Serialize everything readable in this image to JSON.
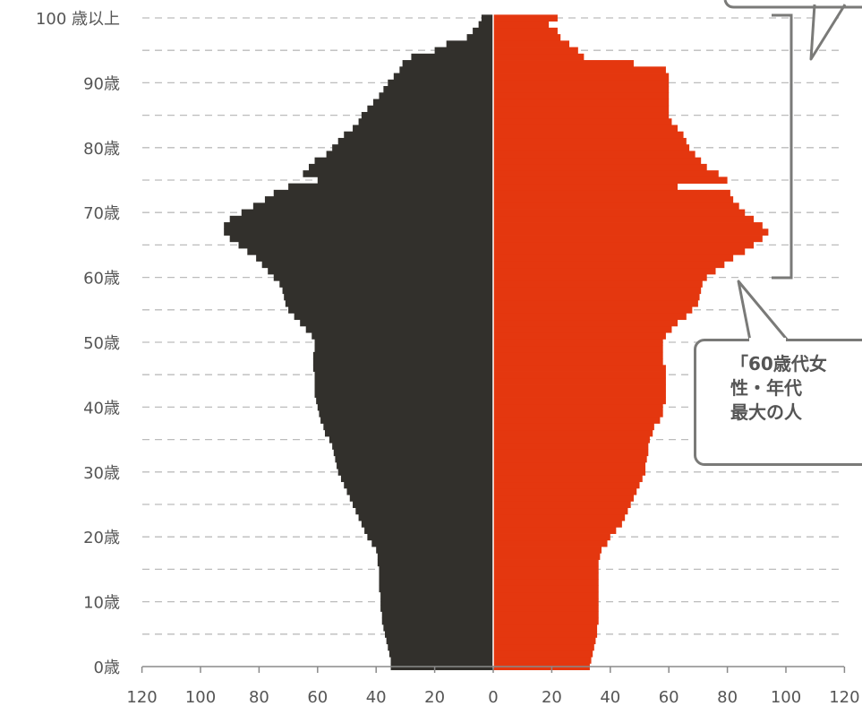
{
  "chart_data": {
    "type": "bar",
    "orientation": "horizontal",
    "subtype": "population-pyramid",
    "title": "",
    "xlabel": "",
    "ylabel": "",
    "xlim": [
      -120,
      120
    ],
    "ylim": [
      0,
      100
    ],
    "grid": "horizontal-dashed",
    "y_tick_labels": [
      {
        "age": 0,
        "label": "0歳"
      },
      {
        "age": 10,
        "label": "10歳"
      },
      {
        "age": 20,
        "label": "20歳"
      },
      {
        "age": 30,
        "label": "30歳"
      },
      {
        "age": 40,
        "label": "40歳"
      },
      {
        "age": 50,
        "label": "50歳"
      },
      {
        "age": 60,
        "label": "60歳"
      },
      {
        "age": 70,
        "label": "70歳"
      },
      {
        "age": 80,
        "label": "80歳"
      },
      {
        "age": 90,
        "label": "90歳"
      },
      {
        "age": 100,
        "label": "100 歳以上"
      }
    ],
    "x_tick_labels": [
      "120",
      "100",
      "80",
      "60",
      "40",
      "20",
      "0",
      "20",
      "40",
      "60",
      "80",
      "100",
      "120"
    ],
    "ages": [
      0,
      1,
      2,
      3,
      4,
      5,
      6,
      7,
      8,
      9,
      10,
      11,
      12,
      13,
      14,
      15,
      16,
      17,
      18,
      19,
      20,
      21,
      22,
      23,
      24,
      25,
      26,
      27,
      28,
      29,
      30,
      31,
      32,
      33,
      34,
      35,
      36,
      37,
      38,
      39,
      40,
      41,
      42,
      43,
      44,
      45,
      46,
      47,
      48,
      49,
      50,
      51,
      52,
      53,
      54,
      55,
      56,
      57,
      58,
      59,
      60,
      61,
      62,
      63,
      64,
      65,
      66,
      67,
      68,
      69,
      70,
      71,
      72,
      73,
      74,
      75,
      76,
      77,
      78,
      79,
      80,
      81,
      82,
      83,
      84,
      85,
      86,
      87,
      88,
      89,
      90,
      91,
      92,
      93,
      94,
      95,
      96,
      97,
      98,
      99,
      100
    ],
    "series": [
      {
        "side": "left",
        "color": "#32302c",
        "values": [
          35,
          35,
          35.5,
          36,
          36.5,
          37,
          37.5,
          38,
          38,
          38.5,
          38.5,
          38.5,
          39,
          39,
          39,
          39,
          39.5,
          39.5,
          40,
          41.5,
          43,
          44,
          45,
          46,
          47,
          48,
          49,
          50,
          51,
          52,
          53,
          53.5,
          54,
          54.5,
          55,
          56,
          57.5,
          58,
          59,
          59.5,
          60,
          60.5,
          61,
          61,
          61,
          61,
          61.5,
          61.5,
          61.5,
          61,
          61,
          62,
          64,
          66,
          68,
          70,
          71,
          71.5,
          72,
          73,
          75,
          77,
          79,
          81,
          84,
          87,
          90,
          92,
          92,
          90,
          86,
          82,
          78,
          75,
          70,
          60,
          65,
          63,
          61,
          57,
          55,
          53,
          51,
          48,
          46,
          45,
          43,
          41,
          39,
          37.5,
          36,
          34,
          32,
          31,
          28,
          20,
          16,
          9,
          7,
          5,
          4
        ]
      },
      {
        "side": "right",
        "color": "#e4370f",
        "values": [
          33,
          33.5,
          34,
          34.5,
          35,
          35.5,
          35.5,
          36,
          36,
          36,
          36,
          36,
          36,
          36,
          36,
          36,
          36,
          36.5,
          37,
          39,
          40,
          42,
          44,
          45,
          46,
          47,
          48,
          49,
          50,
          51,
          52,
          52,
          52.5,
          53,
          53,
          53.5,
          54.5,
          55,
          57,
          58,
          58,
          59,
          59,
          59,
          59,
          59,
          59,
          58,
          58,
          58,
          58,
          59,
          61,
          63,
          66,
          68,
          70,
          70.5,
          71,
          71.5,
          73,
          76,
          79,
          82,
          86,
          89,
          92,
          94,
          92,
          89,
          86,
          84,
          82,
          81,
          63,
          80,
          77,
          73,
          71,
          69,
          67,
          66,
          65,
          63,
          61,
          60,
          60,
          60,
          60,
          60,
          60,
          60,
          59,
          48,
          31,
          29,
          26,
          23,
          22,
          19,
          22
        ]
      }
    ],
    "annotations": [
      {
        "text": "「60歳代女\n性・年代\n最大の人",
        "points_to": "ages 60-100 (female)"
      }
    ]
  }
}
